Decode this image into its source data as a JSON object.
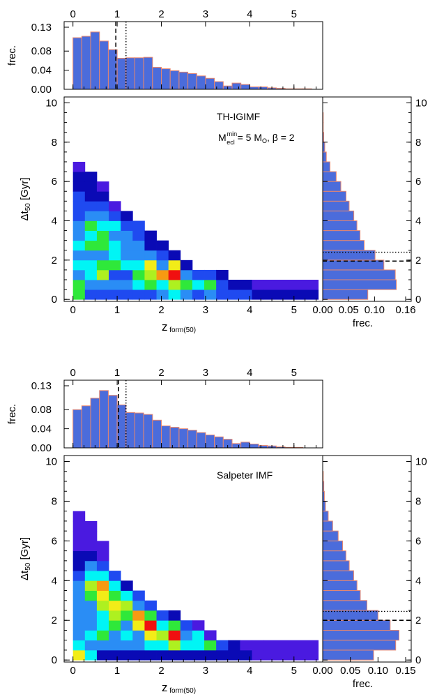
{
  "chart_data": [
    {
      "type": "heatmap",
      "annotation_title": "TH-IGIMF",
      "annotation_params": "M_ecl^min = 5 M_O, β = 2",
      "xlabel": "z",
      "xlabel_sub": "form(50)",
      "ylabel": "Δt",
      "ylabel_sub": "50",
      "ylabel_unit": "[Gyr]",
      "xlim": [
        -0.2,
        5.65
      ],
      "ylim": [
        -0.1,
        10.3
      ],
      "xticks": [
        0,
        1,
        2,
        3,
        4,
        5
      ],
      "yticks": [
        0,
        2,
        4,
        6,
        8,
        10
      ],
      "colormap": [
        "#4a1ae0",
        "#0a0ab5",
        "#1f4af0",
        "#2a8df5",
        "#00f5f5",
        "#2fe83a",
        "#aef020",
        "#f2ec18",
        "#f79a12",
        "#f01010"
      ],
      "heatmap": {
        "x_edges": [
          0.0,
          0.27,
          0.54,
          0.81,
          1.08,
          1.35,
          1.62,
          1.89,
          2.16,
          2.43,
          2.7,
          2.97,
          3.24,
          3.51,
          3.78,
          4.05,
          4.32,
          5.55
        ],
        "dt_bin": 0.5,
        "columns": [
          [
            5,
            5,
            3,
            4,
            3,
            4,
            3,
            3,
            2,
            2,
            2,
            1,
            1,
            0
          ],
          [
            2,
            3,
            4,
            4,
            3,
            5,
            4,
            5,
            3,
            2,
            1,
            1,
            1
          ],
          [
            2,
            3,
            6,
            5,
            3,
            5,
            5,
            4,
            3,
            2,
            1,
            0
          ],
          [
            2,
            3,
            2,
            5,
            4,
            4,
            3,
            4,
            2,
            0
          ],
          [
            2,
            3,
            2,
            4,
            3,
            3,
            3,
            2,
            1
          ],
          [
            2,
            4,
            5,
            4,
            3,
            3,
            2,
            2
          ],
          [
            2,
            5,
            6,
            7,
            3,
            1,
            1
          ],
          [
            3,
            4,
            8,
            3,
            2,
            1
          ],
          [
            4,
            6,
            9,
            7,
            1
          ],
          [
            3,
            5,
            3,
            1
          ],
          [
            2,
            4,
            2
          ],
          [
            3,
            5,
            2
          ],
          [
            2,
            2,
            1
          ],
          [
            2,
            1
          ],
          [
            2,
            1
          ],
          [
            1,
            0
          ],
          [
            1,
            0
          ],
          [
            0
          ]
        ]
      },
      "top_hist": {
        "ylabel": "frec.",
        "ylim": [
          0,
          0.13
        ],
        "yticks": [
          0.0,
          0.04,
          0.08,
          0.13
        ],
        "values": [
          0.108,
          0.111,
          0.12,
          0.101,
          0.083,
          0.065,
          0.066,
          0.066,
          0.067,
          0.046,
          0.043,
          0.039,
          0.036,
          0.033,
          0.028,
          0.023,
          0.016,
          0.007,
          0.013,
          0.01,
          0.005,
          0.005,
          0.003,
          0.002,
          0.001,
          0.001,
          0.001,
          0.0,
          0.0,
          0.0,
          0.0,
          0.0
        ],
        "dashed_line_x": 0.97,
        "dotted_line_x": 1.2
      },
      "side_hist": {
        "xlabel": "frec.",
        "xlim": [
          0,
          0.16
        ],
        "xticks": [
          0.0,
          0.05,
          0.1,
          0.16
        ],
        "values": [
          0.087,
          0.142,
          0.14,
          0.118,
          0.101,
          0.08,
          0.072,
          0.066,
          0.06,
          0.051,
          0.045,
          0.035,
          0.026,
          0.014,
          0.007,
          0.004,
          0.002,
          0.001,
          0.001,
          0.0,
          0.0
        ],
        "dashed_line_dt": 1.95,
        "dotted_line_dt": 2.4
      }
    },
    {
      "type": "heatmap",
      "annotation_title": "Salpeter IMF",
      "xlabel": "z",
      "xlabel_sub": "form(50)",
      "ylabel": "Δt",
      "ylabel_sub": "50",
      "ylabel_unit": "[Gyr]",
      "xlim": [
        -0.2,
        5.65
      ],
      "ylim": [
        -0.1,
        10.3
      ],
      "xticks": [
        0,
        1,
        2,
        3,
        4,
        5
      ],
      "yticks": [
        0,
        2,
        4,
        6,
        8,
        10
      ],
      "colormap": [
        "#4a1ae0",
        "#0a0ab5",
        "#1f4af0",
        "#2a8df5",
        "#00f5f5",
        "#2fe83a",
        "#aef020",
        "#f2ec18",
        "#f79a12",
        "#f01010"
      ],
      "heatmap": {
        "x_edges": [
          0.0,
          0.27,
          0.54,
          0.81,
          1.08,
          1.35,
          1.62,
          1.89,
          2.16,
          2.43,
          2.7,
          2.97,
          3.24,
          3.51,
          3.78,
          4.05,
          4.32,
          5.55
        ],
        "dt_bin": 0.5,
        "columns": [
          [
            7,
            4,
            3,
            3,
            3,
            3,
            3,
            3,
            2,
            1,
            1,
            0,
            0,
            0,
            0
          ],
          [
            4,
            3,
            4,
            3,
            3,
            3,
            5,
            6,
            4,
            3,
            1,
            0,
            0,
            0
          ],
          [
            1,
            3,
            5,
            4,
            4,
            6,
            7,
            8,
            4,
            2,
            0,
            0
          ],
          [
            1,
            3,
            3,
            5,
            6,
            7,
            5,
            4,
            2
          ],
          [
            1,
            3,
            4,
            3,
            5,
            6,
            4,
            1
          ],
          [
            1,
            3,
            3,
            7,
            8,
            3,
            2
          ],
          [
            1,
            4,
            7,
            9,
            5,
            2
          ],
          [
            1,
            4,
            6,
            4,
            2
          ],
          [
            1,
            6,
            9,
            5,
            1
          ],
          [
            1,
            4,
            3,
            2
          ],
          [
            1,
            4,
            4,
            0
          ],
          [
            1,
            5,
            0
          ],
          [
            1,
            2
          ],
          [
            1,
            1
          ],
          [
            1,
            0
          ],
          [
            0,
            0
          ],
          [
            0,
            0
          ],
          [
            0
          ]
        ]
      },
      "top_hist": {
        "ylabel": "frec.",
        "ylim": [
          0,
          0.13
        ],
        "yticks": [
          0.0,
          0.04,
          0.08,
          0.13
        ],
        "values": [
          0.08,
          0.088,
          0.104,
          0.12,
          0.11,
          0.09,
          0.074,
          0.073,
          0.07,
          0.058,
          0.046,
          0.043,
          0.04,
          0.037,
          0.032,
          0.027,
          0.023,
          0.018,
          0.009,
          0.012,
          0.008,
          0.005,
          0.004,
          0.002,
          0.001,
          0.001,
          0.0,
          0.0,
          0.0,
          0.0,
          0.0,
          0.0
        ],
        "dashed_line_x": 1.03,
        "dotted_line_x": 1.2
      },
      "side_hist": {
        "xlabel": "frec.",
        "xlim": [
          0,
          0.15
        ],
        "xticks": [
          0.0,
          0.05,
          0.1,
          0.15
        ],
        "values": [
          0.092,
          0.132,
          0.138,
          0.122,
          0.1,
          0.08,
          0.068,
          0.062,
          0.056,
          0.048,
          0.042,
          0.036,
          0.028,
          0.018,
          0.01,
          0.005,
          0.003,
          0.002,
          0.001,
          0.0,
          0.0
        ],
        "dashed_line_dt": 2.0,
        "dotted_line_dt": 2.45
      }
    }
  ]
}
